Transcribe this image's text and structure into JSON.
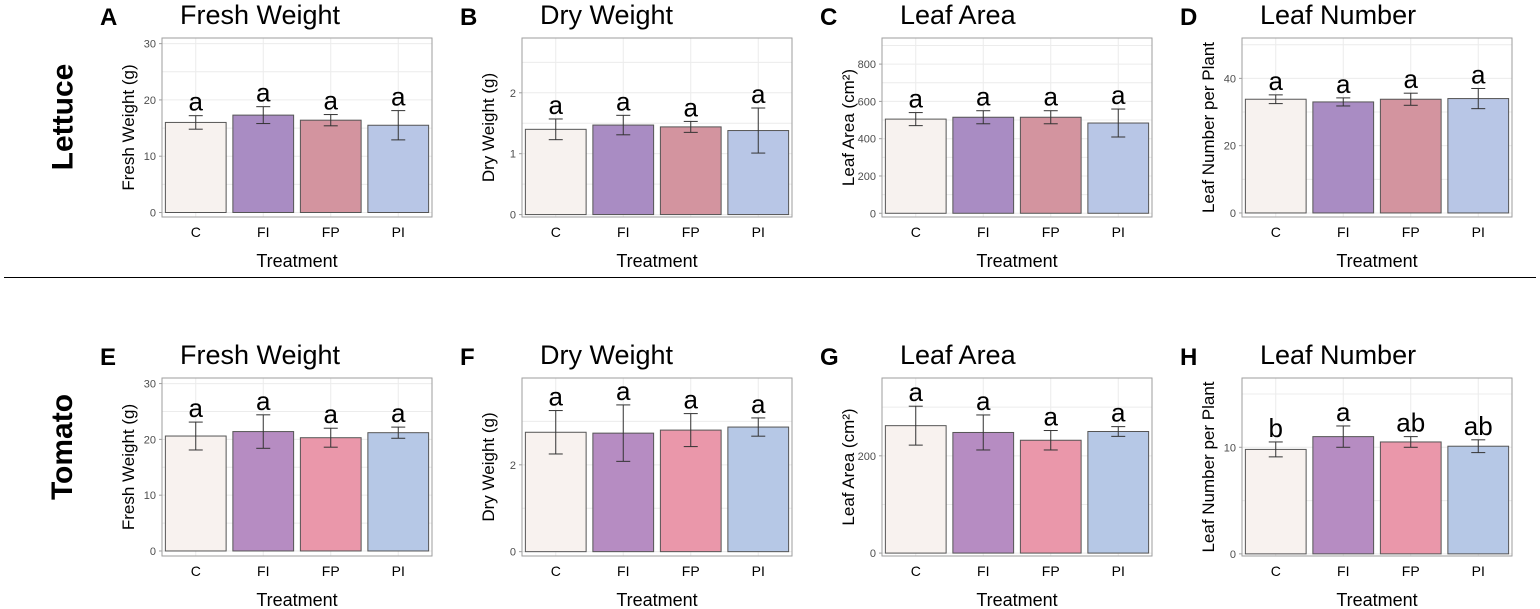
{
  "rows": [
    {
      "label": "Lettuce"
    },
    {
      "label": "Tomato"
    }
  ],
  "xlabel": "Treatment",
  "colors": {
    "lettuce": [
      "#f7f2ef",
      "#a98cc3",
      "#d3949f",
      "#b8c6e6"
    ],
    "tomato": [
      "#f8f2ef",
      "#b68cc2",
      "#ea97aa",
      "#b6c8e6"
    ],
    "frame": "#9e9e9e",
    "grid": "#ececec",
    "errorbar": "#333333",
    "text": "#000000",
    "tick_text": "#4d4d4d"
  },
  "chart_data": [
    {
      "panel": "A",
      "type": "bar",
      "title": "Fresh Weight",
      "ylabel": "Fresh Weight (g)",
      "categories": [
        "C",
        "FI",
        "FP",
        "PI"
      ],
      "values": [
        16.0,
        17.3,
        16.4,
        15.5
      ],
      "errors": [
        1.2,
        1.5,
        1.0,
        2.6
      ],
      "letters": [
        "a",
        "a",
        "a",
        "a"
      ],
      "ylim": [
        -0.8,
        31
      ],
      "yticks": [
        0,
        10,
        20,
        30
      ]
    },
    {
      "panel": "B",
      "type": "bar",
      "title": "Dry Weight",
      "ylabel": "Dry Weight (g)",
      "categories": [
        "C",
        "FI",
        "FP",
        "PI"
      ],
      "values": [
        1.4,
        1.47,
        1.44,
        1.38
      ],
      "errors": [
        0.17,
        0.16,
        0.09,
        0.37
      ],
      "letters": [
        "a",
        "a",
        "a",
        "a"
      ],
      "ylim": [
        -0.04,
        2.9
      ],
      "yticks": [
        0,
        1,
        2
      ]
    },
    {
      "panel": "C",
      "type": "bar",
      "title": "Leaf Area",
      "ylabel": "Leaf Area (cm²)",
      "categories": [
        "C",
        "FI",
        "FP",
        "PI"
      ],
      "values": [
        505,
        515,
        515,
        484
      ],
      "errors": [
        35,
        35,
        35,
        75
      ],
      "letters": [
        "a",
        "a",
        "a",
        "a"
      ],
      "ylim": [
        -20,
        940
      ],
      "yticks": [
        0,
        200,
        400,
        600,
        800
      ]
    },
    {
      "panel": "D",
      "type": "bar",
      "title": "Leaf Number",
      "ylabel": "Leaf Number per Plant",
      "categories": [
        "C",
        "FI",
        "FP",
        "PI"
      ],
      "values": [
        33.8,
        33.0,
        33.8,
        34.0
      ],
      "errors": [
        1.3,
        1.2,
        1.8,
        3.0
      ],
      "letters": [
        "a",
        "a",
        "a",
        "a"
      ],
      "ylim": [
        -1.2,
        52
      ],
      "yticks": [
        0,
        20,
        40
      ]
    },
    {
      "panel": "E",
      "type": "bar",
      "title": "Fresh Weight",
      "ylabel": "Fresh Weight (g)",
      "categories": [
        "C",
        "FI",
        "FP",
        "PI"
      ],
      "values": [
        20.6,
        21.4,
        20.3,
        21.2
      ],
      "errors": [
        2.5,
        3.0,
        1.7,
        1.0
      ],
      "letters": [
        "a",
        "a",
        "a",
        "a"
      ],
      "ylim": [
        -0.9,
        31
      ],
      "yticks": [
        0,
        10,
        20,
        30
      ]
    },
    {
      "panel": "F",
      "type": "bar",
      "title": "Dry Weight",
      "ylabel": "Dry Weight (g)",
      "categories": [
        "C",
        "FI",
        "FP",
        "PI"
      ],
      "values": [
        2.75,
        2.73,
        2.8,
        2.87
      ],
      "errors": [
        0.5,
        0.65,
        0.38,
        0.21
      ],
      "letters": [
        "a",
        "a",
        "a",
        "a"
      ],
      "ylim": [
        -0.1,
        4.0
      ],
      "yticks": [
        0,
        2
      ]
    },
    {
      "panel": "G",
      "type": "bar",
      "title": "Leaf Area",
      "ylabel": "Leaf Area (cm²)",
      "categories": [
        "C",
        "FI",
        "FP",
        "PI"
      ],
      "values": [
        262,
        248,
        232,
        250
      ],
      "errors": [
        40,
        36,
        20,
        10
      ],
      "letters": [
        "a",
        "a",
        "a",
        "a"
      ],
      "ylim": [
        -6,
        360
      ],
      "yticks": [
        0,
        200
      ]
    },
    {
      "panel": "H",
      "type": "bar",
      "title": "Leaf Number",
      "ylabel": "Leaf Number per Plant",
      "categories": [
        "C",
        "FI",
        "FP",
        "PI"
      ],
      "values": [
        9.8,
        11.0,
        10.5,
        10.1
      ],
      "errors": [
        0.7,
        1.0,
        0.5,
        0.6
      ],
      "letters": [
        "b",
        "a",
        "ab",
        "ab"
      ],
      "ylim": [
        -0.2,
        16.5
      ],
      "yticks": [
        0,
        10
      ]
    }
  ]
}
